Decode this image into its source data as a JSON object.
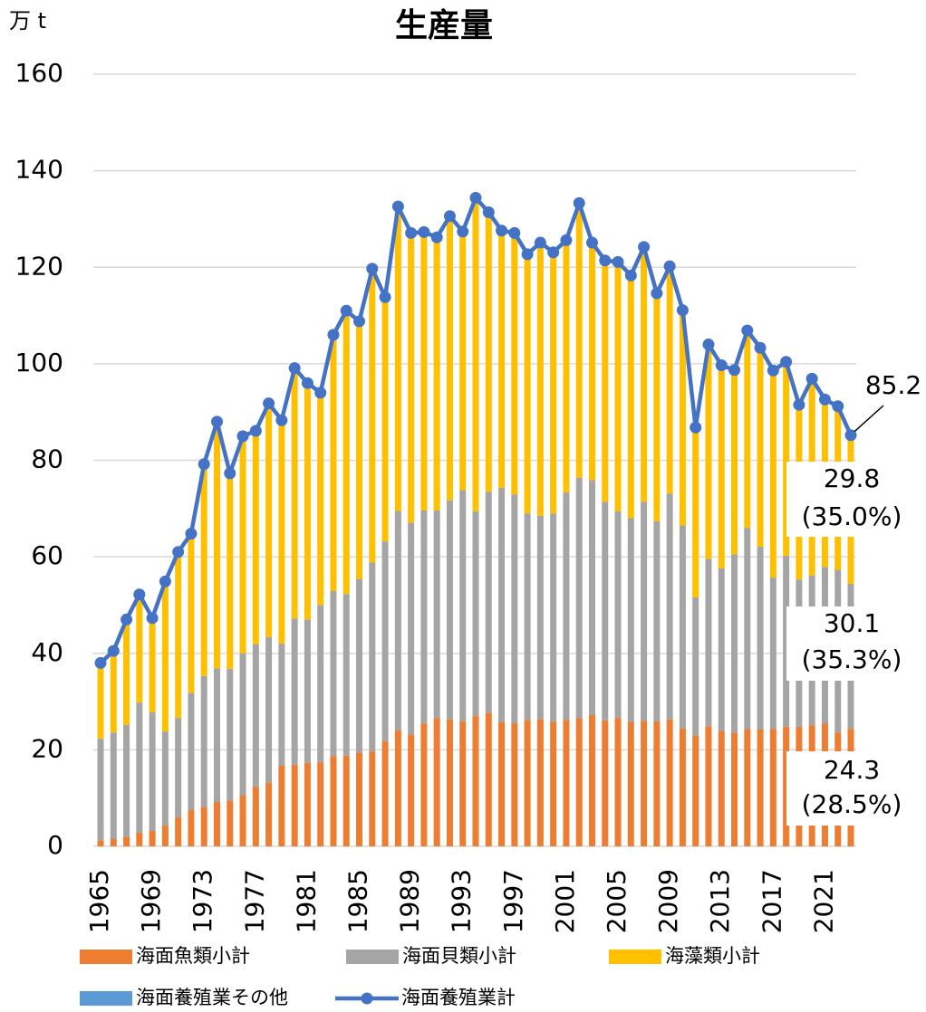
{
  "chart_data": {
    "type": "bar",
    "title": "生産量",
    "y_axis_label": "万 t",
    "categories": [
      "1965",
      "1966",
      "1967",
      "1968",
      "1969",
      "1970",
      "1971",
      "1972",
      "1973",
      "1974",
      "1975",
      "1976",
      "1977",
      "1978",
      "1979",
      "1980",
      "1981",
      "1982",
      "1983",
      "1984",
      "1985",
      "1986",
      "1987",
      "1988",
      "1989",
      "1990",
      "1991",
      "1992",
      "1993",
      "1994",
      "1995",
      "1996",
      "1997",
      "1998",
      "1999",
      "2000",
      "2001",
      "2002",
      "2003",
      "2004",
      "2005",
      "2006",
      "2007",
      "2008",
      "2009",
      "2010",
      "2011",
      "2012",
      "2013",
      "2014",
      "2015",
      "2016",
      "2017",
      "2018",
      "2019",
      "2020",
      "2021",
      "2022",
      "2023"
    ],
    "series": [
      {
        "name": "海面魚類小計",
        "color": "#ED7D31",
        "values": [
          1.2,
          1.5,
          2,
          2.8,
          3.2,
          4.3,
          6,
          7.5,
          8.2,
          9.2,
          9.5,
          10.6,
          12.3,
          13.2,
          16.7,
          16.9,
          17.3,
          17.4,
          18.7,
          18.8,
          19.4,
          19.6,
          21.8,
          24,
          23.2,
          25.4,
          26.6,
          26.3,
          25.9,
          27,
          27.7,
          25.7,
          25.5,
          26.2,
          26.4,
          25.8,
          26.2,
          26.6,
          27.2,
          26.1,
          26.6,
          25.8,
          26,
          25.9,
          26.3,
          24.4,
          22.9,
          24.9,
          23.9,
          23.6,
          24.3,
          24.2,
          24.3,
          24.8,
          24.8,
          25.1,
          25.5,
          23.6,
          24.3
        ]
      },
      {
        "name": "海面貝類小計",
        "color": "#A5A5A5",
        "values": [
          21.1,
          22.1,
          23.2,
          27,
          24.6,
          19.5,
          20.6,
          24.3,
          27.1,
          27.7,
          27.3,
          29.4,
          29.6,
          30.2,
          25.3,
          30.3,
          29.7,
          32.6,
          34.2,
          33.5,
          36,
          39.2,
          41.4,
          45.5,
          43.9,
          44.2,
          43,
          45.4,
          47.9,
          42.4,
          45.8,
          48.6,
          47.4,
          42.8,
          42.1,
          43.2,
          47.2,
          49.8,
          48.7,
          45.3,
          42.8,
          42.2,
          45.4,
          41.5,
          46.8,
          42.1,
          28.7,
          34.7,
          33.7,
          36.9,
          41.7,
          37.9,
          31.4,
          35.4,
          30.5,
          31,
          32.4,
          33.7,
          30.1
        ]
      },
      {
        "name": "海藻類小計",
        "color": "#FFC000",
        "values": [
          15.2,
          16.4,
          21.3,
          21.9,
          19,
          30.6,
          33.9,
          32.5,
          43.4,
          50.6,
          40,
          44.5,
          43.7,
          47.9,
          45.8,
          51.4,
          48.5,
          43.5,
          52.6,
          58.2,
          52.9,
          60.4,
          50.1,
          62.6,
          59.5,
          57.2,
          56.1,
          58.4,
          53.1,
          64.5,
          57.4,
          52.8,
          53.7,
          53.2,
          56.1,
          53.1,
          51.2,
          55.9,
          48.2,
          49,
          50.7,
          49.3,
          51.8,
          46.2,
          46.1,
          43.6,
          34.2,
          43.4,
          41.1,
          37.2,
          39.9,
          40.2,
          41.9,
          39.2,
          35.2,
          39.8,
          33.7,
          32.9,
          29.8
        ]
      },
      {
        "name": "海面養殖業その他",
        "color": "#5B9BD5",
        "values": [
          0.5,
          0.5,
          0.5,
          0.5,
          0.5,
          0.5,
          0.5,
          0.5,
          0.5,
          0.5,
          0.5,
          0.5,
          0.5,
          0.5,
          0.5,
          0.5,
          0.5,
          0.5,
          0.5,
          0.5,
          0.5,
          0.5,
          0.5,
          0.5,
          0.5,
          0.5,
          0.5,
          0.5,
          0.5,
          0.5,
          0.5,
          0.5,
          0.5,
          0.5,
          0.5,
          1,
          1,
          1,
          1,
          1,
          1,
          1,
          1,
          1,
          1,
          1,
          1,
          1,
          1,
          1,
          1,
          1,
          1,
          1,
          1,
          1,
          1,
          1,
          1
        ]
      },
      {
        "name": "海面養殖業計",
        "color": "#4472C4",
        "type": "line",
        "values": [
          38,
          40.5,
          47,
          52.2,
          47.3,
          54.9,
          61,
          64.8,
          79.2,
          88,
          77.3,
          85,
          86.1,
          91.8,
          88.3,
          99.1,
          96,
          94,
          106,
          111,
          108.8,
          119.7,
          113.8,
          132.6,
          127.1,
          127.3,
          126.2,
          130.6,
          127.4,
          134.4,
          131.4,
          127.6,
          127.1,
          122.7,
          125.1,
          123.1,
          125.6,
          133.3,
          125.1,
          121.4,
          121.1,
          118.3,
          124.2,
          114.6,
          120.2,
          111.1,
          86.8,
          104,
          99.7,
          98.7,
          106.9,
          103.3,
          98.6,
          100.4,
          91.5,
          96.9,
          92.6,
          91.2,
          85.2
        ]
      }
    ],
    "annotations": [
      "(35.0%)",
      "(35.3%)",
      "(28.5%)"
    ],
    "ylim": [
      0,
      160
    ],
    "yticks": [
      0,
      20,
      40,
      60,
      80,
      100,
      120,
      140,
      160
    ],
    "grid": true
  }
}
